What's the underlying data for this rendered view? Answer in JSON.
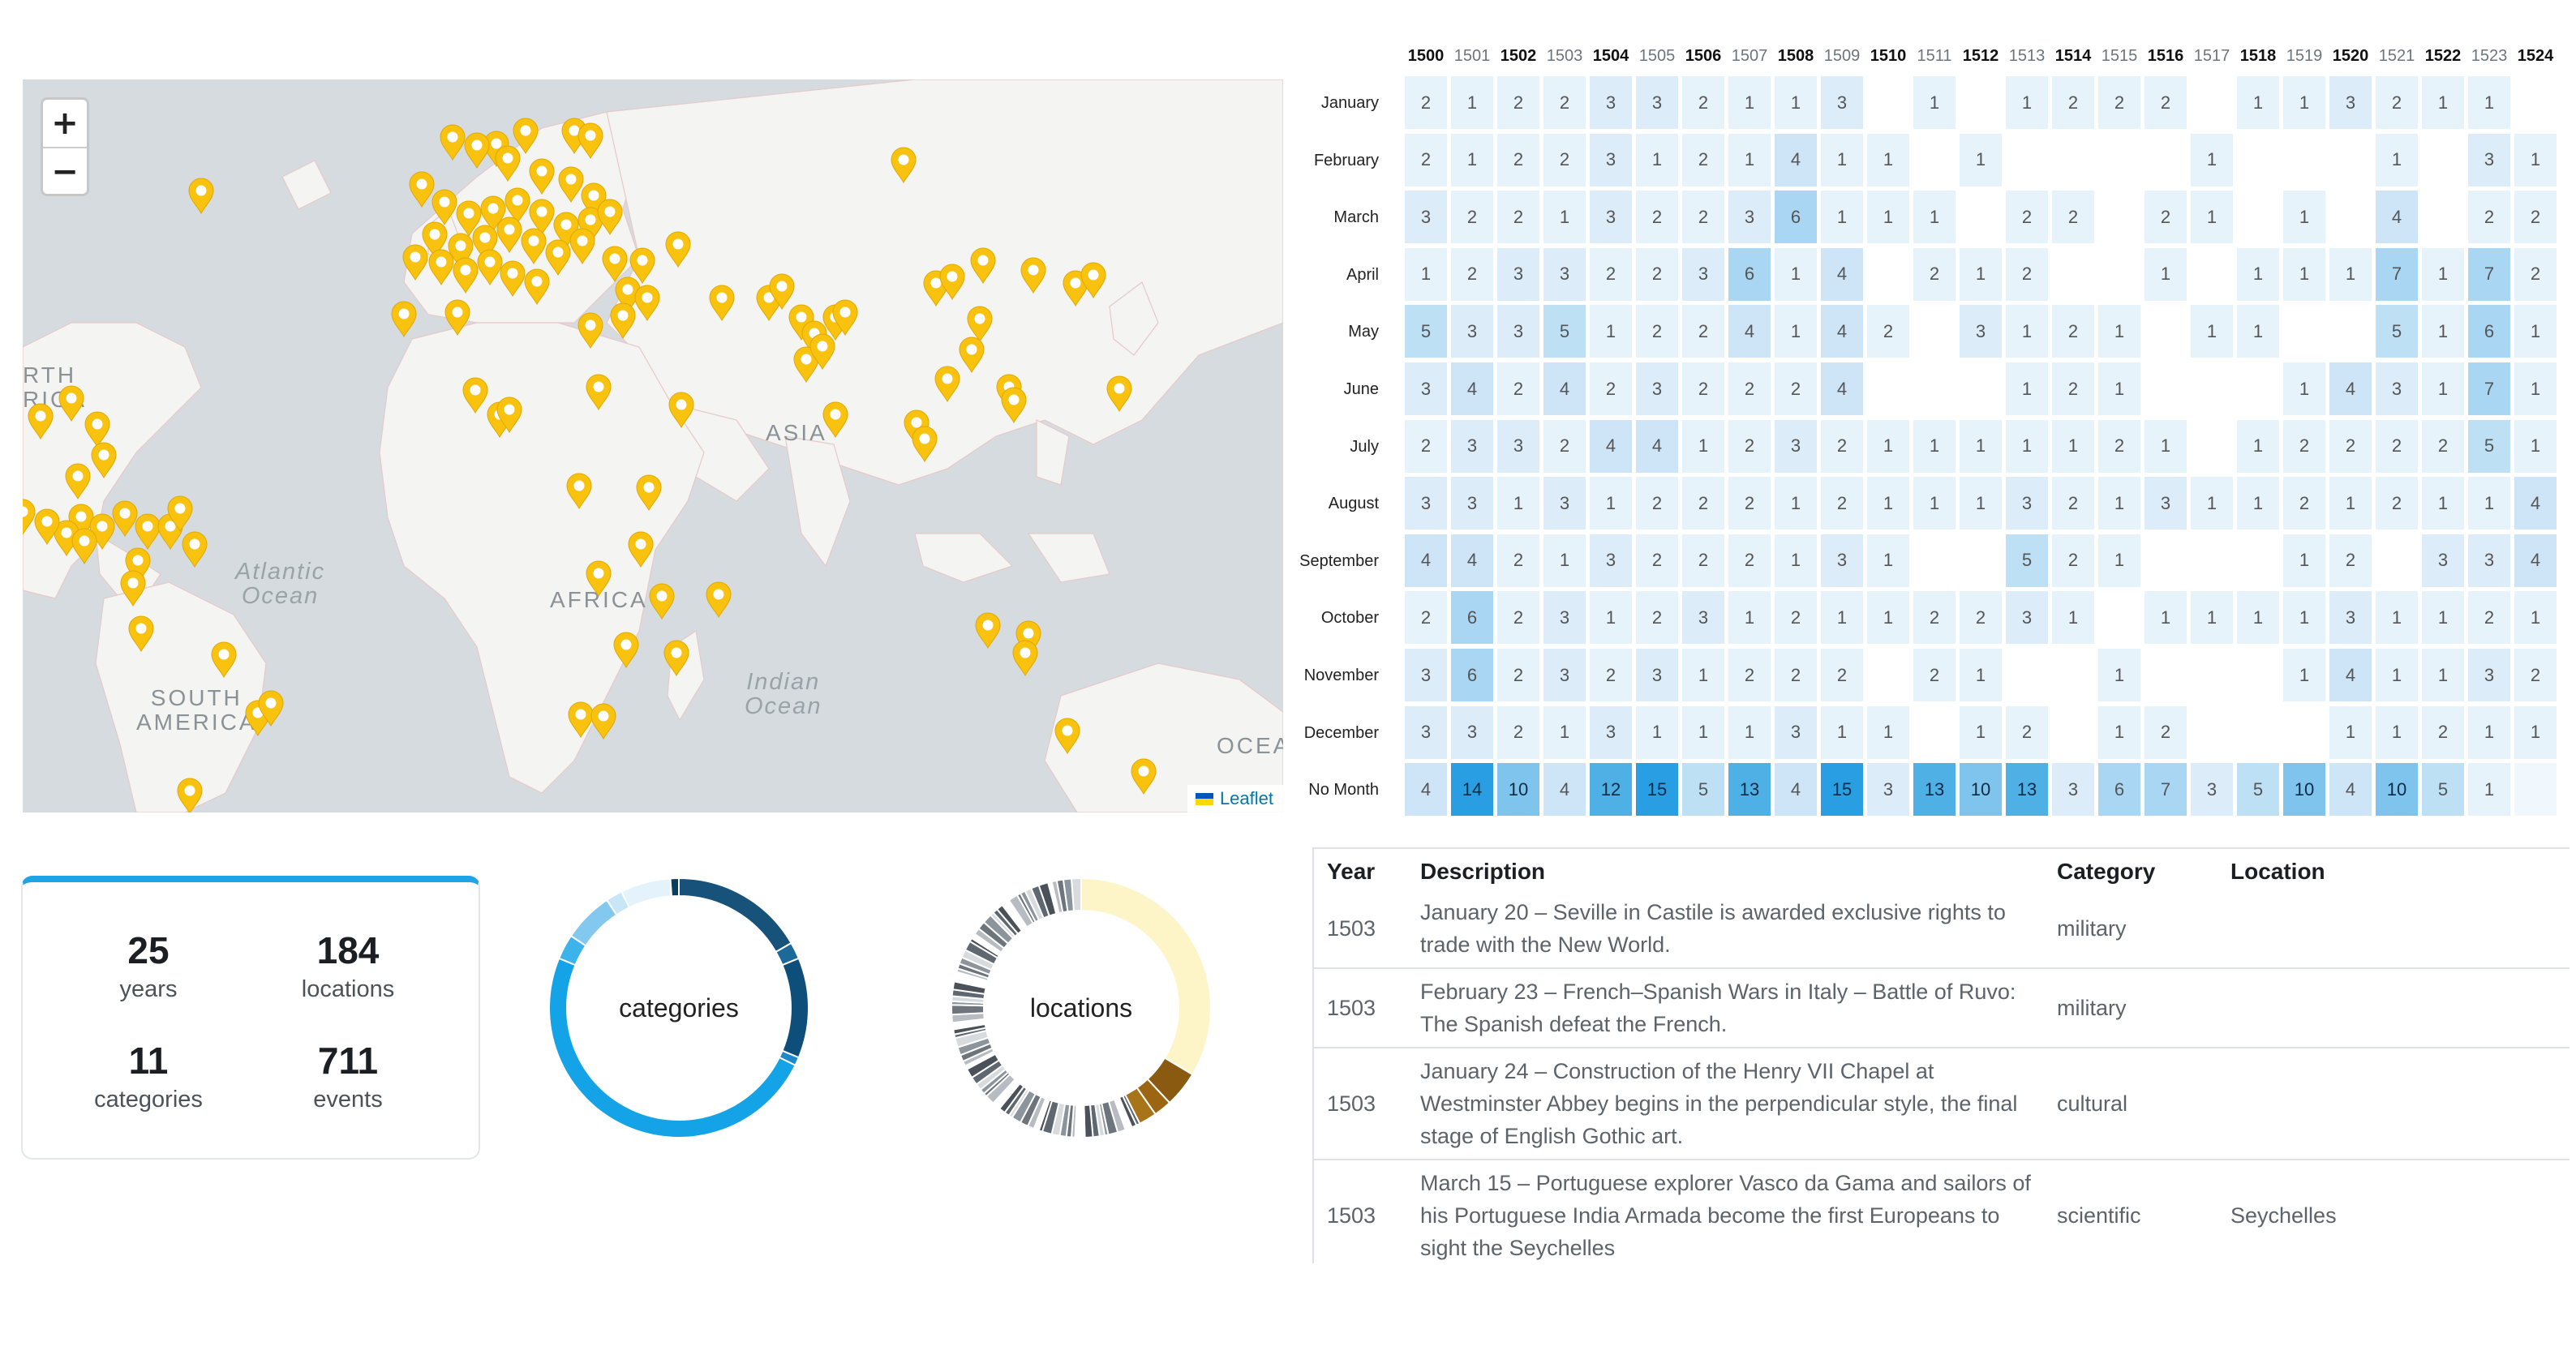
{
  "map": {
    "zoom_in": "+",
    "zoom_out": "−",
    "attribution": "Leaflet",
    "labels": {
      "north_america": "RTH\nRICA",
      "south_america": "SOUTH\nAMERICA",
      "africa": "AFRICA",
      "asia": "ASIA",
      "atlantic": "Atlantic\nOcean",
      "indian": "Indian\nOcean",
      "oceania": "OCEA"
    },
    "marker_color": "#f8c20e"
  },
  "stats": {
    "years": {
      "value": "25",
      "label": "years"
    },
    "locations": {
      "value": "184",
      "label": "locations"
    },
    "categories": {
      "value": "11",
      "label": "categories"
    },
    "events": {
      "value": "711",
      "label": "events"
    }
  },
  "donuts": {
    "categories_label": "categories",
    "locations_label": "locations"
  },
  "heatmap": {
    "years": [
      "1500",
      "1501",
      "1502",
      "1503",
      "1504",
      "1505",
      "1506",
      "1507",
      "1508",
      "1509",
      "1510",
      "1511",
      "1512",
      "1513",
      "1514",
      "1515",
      "1516",
      "1517",
      "1518",
      "1519",
      "1520",
      "1521",
      "1522",
      "1523",
      "1524"
    ],
    "bold_years": [
      "1500",
      "1502",
      "1504",
      "1506",
      "1508",
      "1510",
      "1512",
      "1514",
      "1516",
      "1518",
      "1520",
      "1522",
      "1524"
    ],
    "months": [
      "January",
      "February",
      "March",
      "April",
      "May",
      "June",
      "July",
      "August",
      "September",
      "October",
      "November",
      "December",
      "No Month"
    ],
    "rows": [
      [
        "2",
        "1",
        "2",
        "2",
        "3",
        "3",
        "2",
        "1",
        "1",
        "3",
        "",
        "1",
        "",
        "1",
        "2",
        "2",
        "2",
        "",
        "1",
        "1",
        "3",
        "2",
        "1",
        "1",
        ""
      ],
      [
        "2",
        "1",
        "2",
        "2",
        "3",
        "1",
        "2",
        "1",
        "4",
        "1",
        "1",
        "",
        "1",
        "",
        "",
        "",
        "",
        "1",
        "",
        "",
        "",
        "1",
        "",
        "3",
        "1"
      ],
      [
        "3",
        "2",
        "2",
        "1",
        "3",
        "2",
        "2",
        "3",
        "6",
        "1",
        "1",
        "1",
        "",
        "2",
        "2",
        "",
        "2",
        "1",
        "",
        "1",
        "",
        "4",
        "",
        "2",
        "2"
      ],
      [
        "1",
        "2",
        "3",
        "3",
        "2",
        "2",
        "3",
        "6",
        "1",
        "4",
        "",
        "2",
        "1",
        "2",
        "",
        "",
        "1",
        "",
        "1",
        "1",
        "1",
        "7",
        "1",
        "7",
        "2"
      ],
      [
        "5",
        "3",
        "3",
        "5",
        "1",
        "2",
        "2",
        "4",
        "1",
        "4",
        "2",
        "",
        "3",
        "1",
        "2",
        "1",
        "",
        "1",
        "1",
        "",
        "",
        "5",
        "1",
        "6",
        "1"
      ],
      [
        "3",
        "4",
        "2",
        "4",
        "2",
        "3",
        "2",
        "2",
        "2",
        "4",
        "",
        "",
        "",
        "1",
        "2",
        "1",
        "",
        "",
        "",
        "1",
        "4",
        "3",
        "1",
        "7",
        "1"
      ],
      [
        "2",
        "3",
        "3",
        "2",
        "4",
        "4",
        "1",
        "2",
        "3",
        "2",
        "1",
        "1",
        "1",
        "1",
        "1",
        "2",
        "1",
        "",
        "1",
        "2",
        "2",
        "2",
        "2",
        "5",
        "1"
      ],
      [
        "3",
        "3",
        "1",
        "3",
        "1",
        "2",
        "2",
        "2",
        "1",
        "2",
        "1",
        "1",
        "1",
        "3",
        "2",
        "1",
        "3",
        "1",
        "1",
        "2",
        "1",
        "2",
        "1",
        "1",
        "4"
      ],
      [
        "4",
        "4",
        "2",
        "1",
        "3",
        "2",
        "2",
        "2",
        "1",
        "3",
        "1",
        "",
        "",
        "5",
        "2",
        "1",
        "",
        "",
        "",
        "1",
        "2",
        "",
        "3",
        "3",
        "4"
      ],
      [
        "2",
        "6",
        "2",
        "3",
        "1",
        "2",
        "3",
        "1",
        "2",
        "1",
        "1",
        "2",
        "2",
        "3",
        "1",
        "",
        "1",
        "1",
        "1",
        "1",
        "3",
        "1",
        "1",
        "2",
        "1"
      ],
      [
        "3",
        "6",
        "2",
        "3",
        "2",
        "3",
        "1",
        "2",
        "2",
        "2",
        "",
        "2",
        "1",
        "",
        "",
        "1",
        "",
        "",
        "",
        "1",
        "4",
        "1",
        "1",
        "3",
        "2"
      ],
      [
        "3",
        "3",
        "2",
        "1",
        "3",
        "1",
        "1",
        "1",
        "3",
        "1",
        "1",
        "",
        "1",
        "2",
        "",
        "1",
        "2",
        "",
        "",
        "",
        "1",
        "1",
        "2",
        "1",
        "1"
      ],
      [
        "4",
        "14",
        "10",
        "4",
        "12",
        "15",
        "5",
        "13",
        "4",
        "15",
        "3",
        "13",
        "10",
        "13",
        "3",
        "6",
        "7",
        "3",
        "5",
        "10",
        "4",
        "10",
        "5",
        "1",
        ""
      ]
    ]
  },
  "table": {
    "headers": {
      "year": "Year",
      "description": "Description",
      "category": "Category",
      "location": "Location"
    },
    "rows": [
      {
        "year": "1503",
        "description": "January 20 – Seville in Castile is awarded exclusive rights to trade with the New World.",
        "category": "military",
        "location": ""
      },
      {
        "year": "1503",
        "description": "February 23 – French–Spanish Wars in Italy – Battle of Ruvo: The Spanish defeat the French.",
        "category": "military",
        "location": ""
      },
      {
        "year": "1503",
        "description": "January 24 – Construction of the Henry VII Chapel at Westminster Abbey begins in the perpendicular style, the final stage of English Gothic art.",
        "category": "cultural",
        "location": ""
      },
      {
        "year": "1503",
        "description": "March 15 – Portuguese explorer Vasco da Gama and sailors of his Portuguese India Armada become the first Europeans to sight the Seychelles",
        "category": "scientific",
        "location": "Seychelles"
      }
    ]
  }
}
